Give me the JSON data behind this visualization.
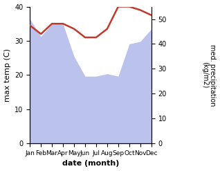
{
  "months": [
    "Jan",
    "Feb",
    "Mar",
    "Apr",
    "May",
    "Jun",
    "Jul",
    "Aug",
    "Sep",
    "Oct",
    "Nov",
    "Dec"
  ],
  "month_indices": [
    0,
    1,
    2,
    3,
    4,
    5,
    6,
    7,
    8,
    9,
    10,
    11
  ],
  "temperature": [
    34.5,
    32.0,
    35.0,
    35.0,
    33.5,
    31.0,
    31.0,
    33.5,
    40.0,
    40.0,
    39.0,
    37.5
  ],
  "precipitation": [
    50.0,
    43.0,
    48.0,
    48.0,
    35.0,
    27.0,
    27.0,
    28.0,
    27.0,
    40.0,
    41.0,
    46.0
  ],
  "temp_color": "#c0392b",
  "precip_color": "#b0b8e8",
  "temp_ylim": [
    0,
    40
  ],
  "temp_yticks": [
    0,
    10,
    20,
    30,
    40
  ],
  "precip_ylim": [
    0,
    55
  ],
  "precip_yticks": [
    0,
    10,
    20,
    30,
    40,
    50
  ],
  "xlabel": "date (month)",
  "ylabel_left": "max temp (C)",
  "ylabel_right": "med. precipitation\n(kg/m2)",
  "bg_color": "#ffffff",
  "fig_width": 3.18,
  "fig_height": 2.47,
  "dpi": 100
}
